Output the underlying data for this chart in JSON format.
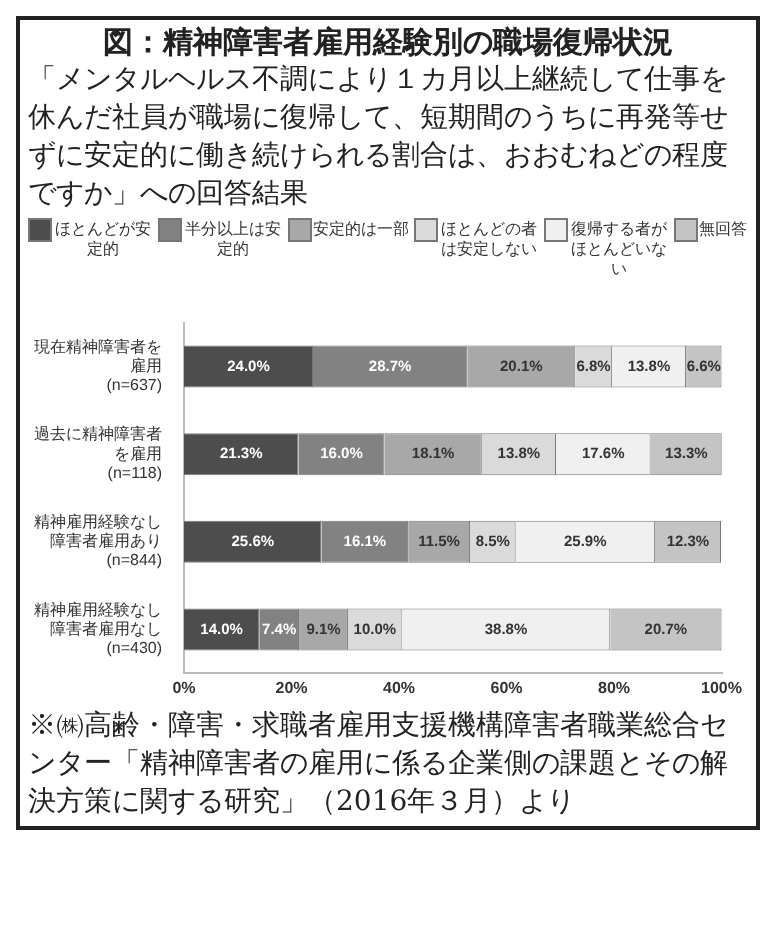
{
  "chart_data": {
    "type": "bar",
    "orientation": "horizontal",
    "stacked": true,
    "title": "図：精神障害者雇用経験別の職場復帰状況",
    "subtitle": "「メンタルヘルス不調により１カ月以上継続して仕事を休んだ社員が職場に復帰して、短期間のうちに再発等せずに安定的に働き続けられる割合は、おおむねどの程度ですか」への回答結果",
    "categories": [
      "現在精神障害者を雇用(n=637)",
      "過去に精神障害者を雇用(n=118)",
      "精神雇用経験なし障害者雇用あり(n=844)",
      "精神雇用経験なし障害者雇用なし(n=430)"
    ],
    "series": [
      {
        "name": "ほとんどが安定的",
        "color": "#4d4d4d",
        "values": [
          24.0,
          21.3,
          25.6,
          14.0
        ],
        "value_labels": [
          "24.0%",
          "21.3%",
          "25.6%",
          "14.0%"
        ]
      },
      {
        "name": "半分以上は安定的",
        "color": "#828282",
        "values": [
          28.7,
          16.0,
          16.1,
          7.4
        ],
        "value_labels": [
          "28.7%",
          "16.0%",
          "16.1%",
          "7.4%"
        ]
      },
      {
        "name": "安定的は一部",
        "color": "#a8a8a8",
        "values": [
          20.1,
          18.1,
          11.5,
          9.1
        ],
        "value_labels": [
          "20.1%",
          "18.1%",
          "11.5%",
          "9.1%"
        ]
      },
      {
        "name": "ほとんどの者は安定しない",
        "color": "#dadada",
        "values": [
          6.8,
          13.8,
          8.5,
          10.0
        ],
        "value_labels": [
          "6.8%",
          "13.8%",
          "8.5%",
          "10.0%"
        ]
      },
      {
        "name": "復帰する者がほとんどいない",
        "color": "#f0f0f0",
        "values": [
          13.8,
          17.6,
          25.9,
          38.8
        ],
        "value_labels": [
          "13.8%",
          "17.6%",
          "25.9%",
          "38.8%"
        ]
      },
      {
        "name": "無回答",
        "color": "#c4c4c4",
        "values": [
          6.6,
          13.3,
          12.3,
          20.7
        ],
        "value_labels": [
          "6.6%",
          "13.3%",
          "12.3%",
          "20.7%"
        ]
      }
    ],
    "xlim": [
      0,
      100
    ],
    "xticks": [
      {
        "value": 0,
        "label": "0%"
      },
      {
        "value": 20,
        "label": "20%"
      },
      {
        "value": 40,
        "label": "40%"
      },
      {
        "value": 60,
        "label": "60%"
      },
      {
        "value": 80,
        "label": "80%"
      },
      {
        "value": 100,
        "label": "100%"
      }
    ],
    "legend": "top",
    "grid": false,
    "annotations": [
      "※㈱高齢・障害・求職者雇用支援機構障害者職業総合センター「精神障害者の雇用に係る企業側の課題とその解決方策に関する研究」（2016年３月）より"
    ]
  }
}
